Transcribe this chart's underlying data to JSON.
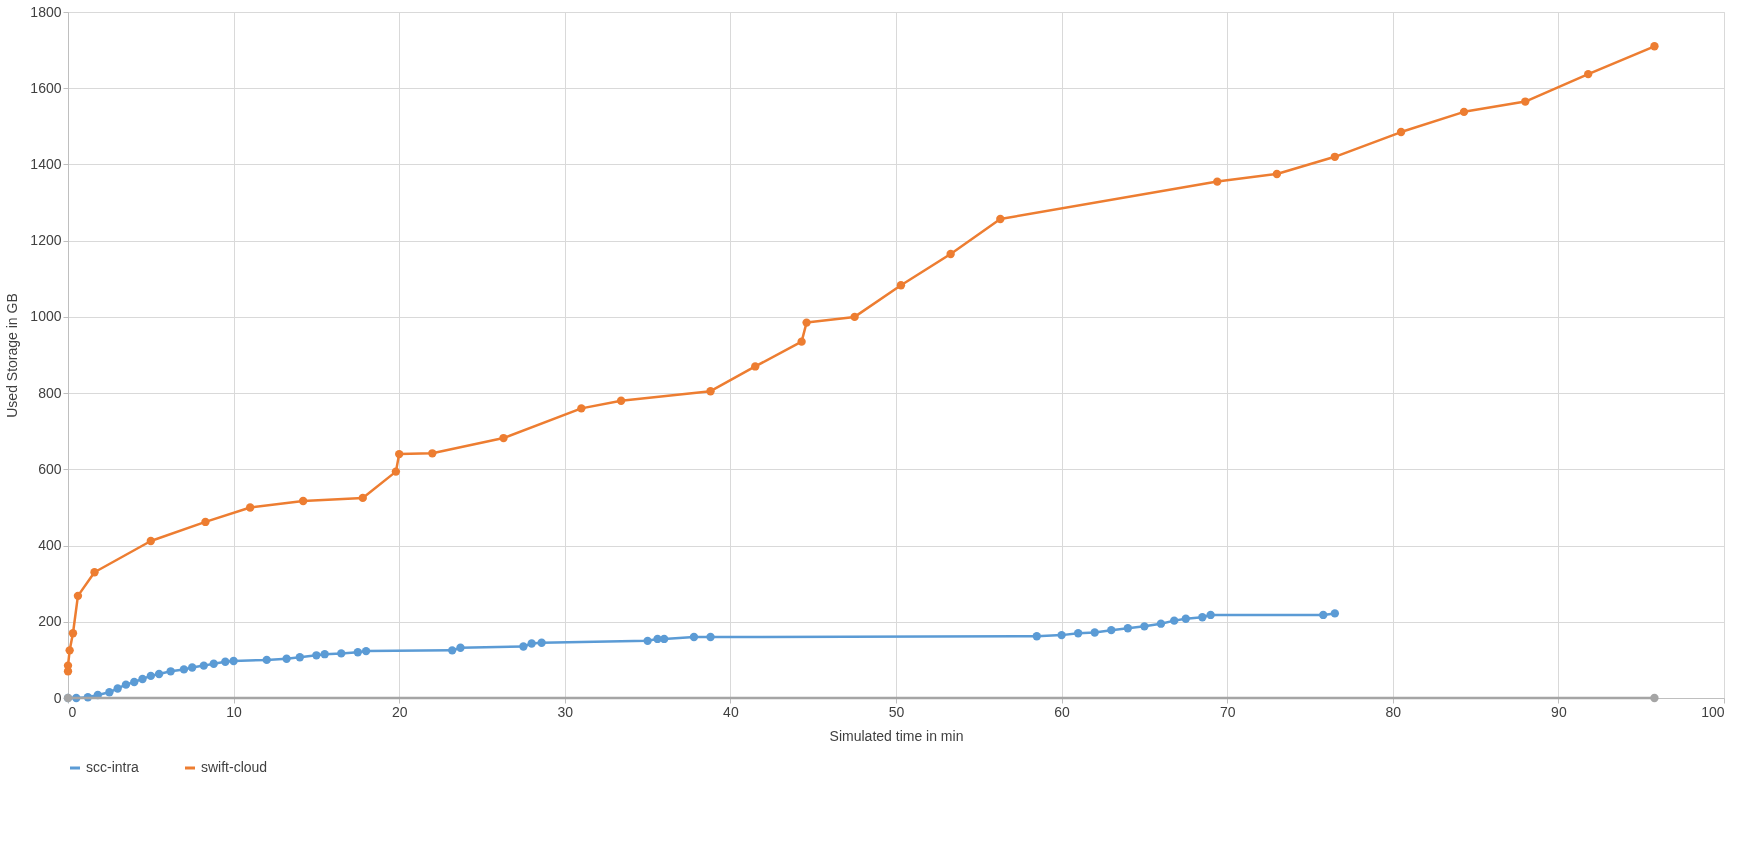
{
  "chart_data": {
    "type": "line",
    "xlabel": "Simulated time in min",
    "ylabel": "Used Storage in GB",
    "xlim": [
      0,
      100
    ],
    "xticks": [
      0,
      10,
      20,
      30,
      40,
      50,
      60,
      70,
      80,
      90,
      100
    ],
    "ylim": [
      0,
      1800
    ],
    "yticks": [
      0,
      200,
      400,
      600,
      800,
      1000,
      1200,
      1400,
      1600,
      1800
    ],
    "grid": true,
    "legend": "bottom",
    "marker": "circle",
    "line_style": "solid",
    "series": [
      {
        "name": "scc-intra",
        "color": "#5b9bd5",
        "x": [
          0,
          0.5,
          1.2,
          1.8,
          2.5,
          3,
          3.5,
          4,
          4.5,
          5,
          5.5,
          6.2,
          7,
          7.5,
          8.2,
          8.8,
          9.5,
          10,
          12,
          13.2,
          14,
          15,
          15.5,
          16.5,
          17.5,
          18,
          23.2,
          23.7,
          27.5,
          28,
          28.6,
          35,
          35.6,
          36,
          37.8,
          38.8,
          58.5,
          60,
          61,
          62,
          63,
          64,
          65,
          66,
          66.8,
          67.5,
          68.5,
          69,
          75.8,
          76.5
        ],
        "values": [
          0,
          0,
          2,
          8,
          15,
          25,
          35,
          42,
          50,
          58,
          63,
          70,
          75,
          80,
          85,
          90,
          95,
          97,
          100,
          103,
          107,
          112,
          115,
          117,
          120,
          123,
          125,
          132,
          135,
          143,
          145,
          150,
          155,
          155,
          160,
          160,
          162,
          165,
          170,
          172,
          178,
          183,
          188,
          195,
          203,
          208,
          212,
          218,
          218,
          222
        ]
      },
      {
        "name": "swift-cloud",
        "color": "#ed7d31",
        "x": [
          0,
          0,
          0.1,
          0.3,
          0.6,
          1.6,
          5,
          8.3,
          11,
          14.2,
          17.8,
          19.8,
          20,
          22,
          26.3,
          31,
          33.4,
          38.8,
          41.5,
          44.3,
          44.6,
          47.5,
          50.3,
          53.3,
          56.3,
          69.4,
          73,
          76.5,
          80.5,
          84.3,
          88,
          91.8,
          95.8
        ],
        "values": [
          70,
          85,
          125,
          170,
          268,
          330,
          412,
          462,
          500,
          517,
          525,
          594,
          640,
          642,
          682,
          760,
          780,
          805,
          870,
          935,
          985,
          1000,
          1083,
          1165,
          1257,
          1355,
          1375,
          1420,
          1485,
          1538,
          1565,
          1637,
          1710
        ]
      },
      {
        "color": "#a5a5a5",
        "x": [
          0,
          95.8
        ],
        "values": [
          0,
          0
        ]
      }
    ]
  }
}
